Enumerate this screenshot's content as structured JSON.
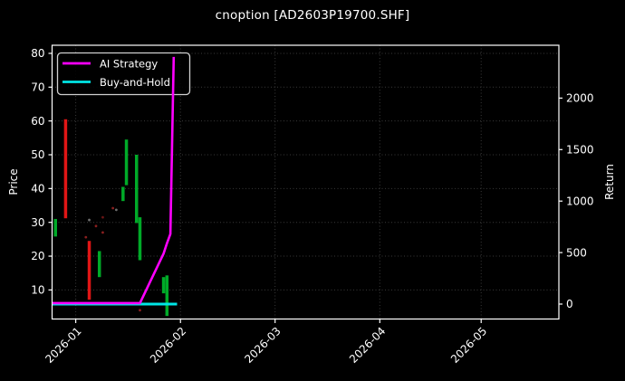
{
  "title": "cnoption [AD2603P19700.SHF]",
  "axes": {
    "left_label": "Price",
    "right_label": "Return"
  },
  "legend": {
    "items": [
      {
        "label": "AI Strategy",
        "color": "#ff00ff"
      },
      {
        "label": "Buy-and-Hold",
        "color": "#00e5e5"
      }
    ]
  },
  "colors": {
    "background": "#000000",
    "text": "#ffffff",
    "grid": "#3a3a3a",
    "spine": "#ffffff",
    "candle_red": "#e01515",
    "candle_green": "#00aa28"
  },
  "chart_data": {
    "type": "mixed-candlestick-line",
    "title": "cnoption [AD2603P19700.SHF]",
    "x_range": [
      "2025-12-25",
      "2026-05-24"
    ],
    "x_tick_dates": [
      "2026-01-01",
      "2026-02-01",
      "2026-03-01",
      "2026-04-01",
      "2026-05-01"
    ],
    "x_tick_labels": [
      "2026-01",
      "2026-02",
      "2026-03",
      "2026-04",
      "2026-05"
    ],
    "price_axis": {
      "label": "Price",
      "ticks": [
        10,
        20,
        30,
        40,
        50,
        60,
        70,
        80
      ],
      "range": [
        1.4,
        82.4
      ]
    },
    "return_axis": {
      "label": "Return",
      "ticks": [
        0,
        500,
        1000,
        1500,
        2000
      ],
      "range": [
        -145,
        2513
      ]
    },
    "grid": true,
    "legend_position": "upper-left",
    "candles": [
      {
        "date": "2025-12-26",
        "low": 25.8,
        "high": 31.0,
        "color": "green"
      },
      {
        "date": "2025-12-29",
        "low": 31.2,
        "high": 60.5,
        "color": "red"
      },
      {
        "date": "2026-01-05",
        "low": 7.1,
        "high": 24.5,
        "color": "red"
      },
      {
        "date": "2026-01-08",
        "low": 13.8,
        "high": 21.5,
        "color": "green"
      },
      {
        "date": "2026-01-15",
        "low": 36.3,
        "high": 40.5,
        "color": "green"
      },
      {
        "date": "2026-01-16",
        "low": 41.0,
        "high": 54.5,
        "color": "green"
      },
      {
        "date": "2026-01-19",
        "low": 29.8,
        "high": 50.0,
        "color": "green"
      },
      {
        "date": "2026-01-20",
        "low": 18.8,
        "high": 31.5,
        "color": "green"
      },
      {
        "date": "2026-01-27",
        "low": 9.0,
        "high": 13.8,
        "color": "green"
      },
      {
        "date": "2026-01-28",
        "low": 2.3,
        "high": 14.3,
        "color": "green"
      }
    ],
    "series": [
      {
        "name": "AI Strategy",
        "axis": "return",
        "color": "#ff00ff",
        "width": 2.6,
        "points": [
          [
            "2025-12-25",
            10
          ],
          [
            "2026-01-20",
            10
          ],
          [
            "2026-01-27",
            490
          ],
          [
            "2026-01-28",
            590
          ],
          [
            "2026-01-29",
            680
          ],
          [
            "2026-01-30",
            2400
          ]
        ]
      },
      {
        "name": "Buy-and-Hold",
        "axis": "return",
        "color": "#00e5e5",
        "width": 3,
        "points": [
          [
            "2025-12-25",
            0
          ],
          [
            "2026-01-31",
            0
          ]
        ]
      }
    ],
    "faint_dots": [
      {
        "date": "2026-01-04",
        "price": 25.6,
        "color": "#8a1f1f"
      },
      {
        "date": "2026-01-05",
        "price": 30.7,
        "color": "#6e6e6e"
      },
      {
        "date": "2026-01-07",
        "price": 28.9,
        "color": "#8a1f1f"
      },
      {
        "date": "2026-01-09",
        "price": 27.0,
        "color": "#8a1f1f"
      },
      {
        "date": "2026-01-09",
        "price": 31.5,
        "color": "#6a1515"
      },
      {
        "date": "2026-01-12",
        "price": 34.2,
        "color": "#8a1f1f"
      },
      {
        "date": "2026-01-13",
        "price": 33.7,
        "color": "#6e6e6e"
      },
      {
        "date": "2026-01-20",
        "price": 4.0,
        "color": "#8a1f1f"
      }
    ]
  }
}
